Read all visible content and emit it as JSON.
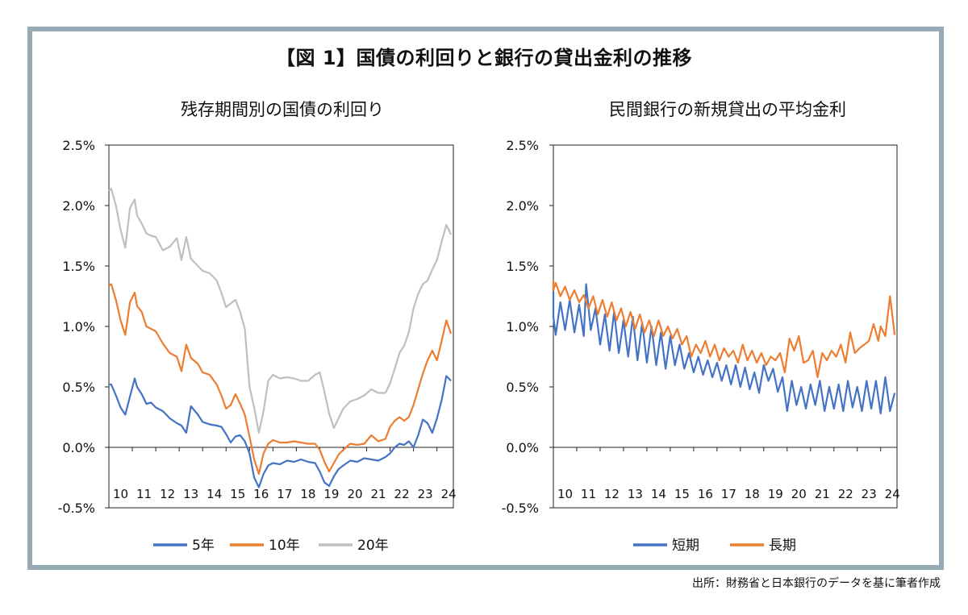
{
  "title": "【図 1】国債の利回りと銀行の貸出金利の推移",
  "source": "出所：財務省と日本銀行のデータを基に筆者作成",
  "colors": {
    "frame": "#97abb7",
    "blue": "#4472c4",
    "orange": "#ed7d31",
    "gray": "#bfbfbf"
  },
  "chart_data": [
    {
      "type": "line",
      "title": "残存期間別の国債の利回り",
      "xlabel": "",
      "ylabel": "",
      "ylim": [
        -0.5,
        2.5
      ],
      "xlim": [
        2010,
        2024.7
      ],
      "x_ticks": [
        "10",
        "11",
        "12",
        "13",
        "14",
        "15",
        "16",
        "17",
        "18",
        "19",
        "20",
        "21",
        "22",
        "23",
        "24"
      ],
      "y_ticks": [
        "2.5%",
        "2.0%",
        "1.5%",
        "1.0%",
        "0.5%",
        "0.0%",
        "-0.5%"
      ],
      "grid": false,
      "legend_position": "bottom",
      "series": [
        {
          "name": "5年",
          "color": "#4472c4",
          "x": [
            2009.9,
            2010.1,
            2010.3,
            2010.5,
            2010.7,
            2010.9,
            2011.1,
            2011.2,
            2011.4,
            2011.6,
            2011.8,
            2012.0,
            2012.3,
            2012.6,
            2012.9,
            2013.1,
            2013.3,
            2013.5,
            2013.8,
            2014.0,
            2014.3,
            2014.6,
            2014.8,
            2015.0,
            2015.2,
            2015.4,
            2015.6,
            2015.8,
            2016.0,
            2016.2,
            2016.4,
            2016.6,
            2016.8,
            2017.0,
            2017.3,
            2017.6,
            2017.9,
            2018.2,
            2018.5,
            2018.8,
            2019.0,
            2019.2,
            2019.4,
            2019.6,
            2019.8,
            2020.0,
            2020.3,
            2020.6,
            2020.9,
            2021.2,
            2021.5,
            2021.8,
            2022.0,
            2022.2,
            2022.4,
            2022.6,
            2022.8,
            2023.0,
            2023.2,
            2023.4,
            2023.6,
            2023.8,
            2024.0,
            2024.2,
            2024.4,
            2024.6
          ],
          "values": [
            0.52,
            0.52,
            0.43,
            0.33,
            0.27,
            0.42,
            0.57,
            0.5,
            0.44,
            0.36,
            0.37,
            0.33,
            0.3,
            0.24,
            0.2,
            0.18,
            0.12,
            0.34,
            0.27,
            0.21,
            0.19,
            0.18,
            0.17,
            0.11,
            0.04,
            0.09,
            0.1,
            0.05,
            -0.05,
            -0.25,
            -0.33,
            -0.22,
            -0.15,
            -0.13,
            -0.14,
            -0.11,
            -0.12,
            -0.1,
            -0.12,
            -0.13,
            -0.2,
            -0.29,
            -0.32,
            -0.24,
            -0.18,
            -0.15,
            -0.11,
            -0.12,
            -0.09,
            -0.1,
            -0.11,
            -0.08,
            -0.05,
            0.0,
            0.03,
            0.02,
            0.05,
            0.0,
            0.1,
            0.23,
            0.2,
            0.12,
            0.24,
            0.39,
            0.59,
            0.55
          ]
        },
        {
          "name": "10年",
          "color": "#ed7d31",
          "x": [
            2009.9,
            2010.1,
            2010.3,
            2010.5,
            2010.7,
            2010.9,
            2011.1,
            2011.2,
            2011.4,
            2011.6,
            2011.8,
            2012.0,
            2012.3,
            2012.6,
            2012.9,
            2013.1,
            2013.3,
            2013.5,
            2013.8,
            2014.0,
            2014.3,
            2014.6,
            2014.8,
            2015.0,
            2015.2,
            2015.4,
            2015.6,
            2015.8,
            2016.0,
            2016.2,
            2016.4,
            2016.6,
            2016.8,
            2017.0,
            2017.3,
            2017.6,
            2017.9,
            2018.2,
            2018.5,
            2018.8,
            2019.0,
            2019.2,
            2019.4,
            2019.6,
            2019.8,
            2020.0,
            2020.3,
            2020.6,
            2020.9,
            2021.2,
            2021.5,
            2021.8,
            2022.0,
            2022.2,
            2022.4,
            2022.6,
            2022.8,
            2023.0,
            2023.2,
            2023.4,
            2023.6,
            2023.8,
            2024.0,
            2024.2,
            2024.4,
            2024.6
          ],
          "values": [
            1.34,
            1.35,
            1.22,
            1.05,
            0.93,
            1.2,
            1.28,
            1.17,
            1.12,
            1.0,
            0.98,
            0.96,
            0.86,
            0.78,
            0.75,
            0.63,
            0.85,
            0.74,
            0.69,
            0.62,
            0.6,
            0.52,
            0.43,
            0.32,
            0.35,
            0.44,
            0.36,
            0.27,
            0.09,
            -0.1,
            -0.22,
            -0.05,
            0.03,
            0.06,
            0.04,
            0.04,
            0.05,
            0.04,
            0.03,
            0.03,
            -0.02,
            -0.12,
            -0.2,
            -0.13,
            -0.06,
            -0.02,
            0.03,
            0.02,
            0.03,
            0.1,
            0.05,
            0.07,
            0.17,
            0.22,
            0.25,
            0.22,
            0.25,
            0.35,
            0.48,
            0.61,
            0.72,
            0.8,
            0.72,
            0.88,
            1.05,
            0.94
          ]
        },
        {
          "name": "20年",
          "color": "#bfbfbf",
          "x": [
            2009.9,
            2010.1,
            2010.3,
            2010.5,
            2010.7,
            2010.9,
            2011.1,
            2011.2,
            2011.4,
            2011.6,
            2011.8,
            2012.0,
            2012.3,
            2012.6,
            2012.9,
            2013.1,
            2013.3,
            2013.5,
            2013.8,
            2014.0,
            2014.3,
            2014.6,
            2014.8,
            2015.0,
            2015.2,
            2015.4,
            2015.6,
            2015.8,
            2016.0,
            2016.2,
            2016.4,
            2016.6,
            2016.8,
            2017.0,
            2017.3,
            2017.6,
            2017.9,
            2018.2,
            2018.5,
            2018.8,
            2019.0,
            2019.2,
            2019.4,
            2019.6,
            2019.8,
            2020.0,
            2020.3,
            2020.6,
            2020.9,
            2021.2,
            2021.5,
            2021.8,
            2022.0,
            2022.2,
            2022.4,
            2022.6,
            2022.8,
            2023.0,
            2023.2,
            2023.4,
            2023.6,
            2023.8,
            2024.0,
            2024.2,
            2024.4,
            2024.6
          ],
          "values": [
            2.12,
            2.14,
            2.0,
            1.8,
            1.65,
            1.98,
            2.05,
            1.92,
            1.85,
            1.77,
            1.75,
            1.74,
            1.63,
            1.66,
            1.73,
            1.55,
            1.74,
            1.56,
            1.5,
            1.46,
            1.44,
            1.38,
            1.28,
            1.16,
            1.19,
            1.22,
            1.12,
            0.98,
            0.5,
            0.33,
            0.12,
            0.3,
            0.55,
            0.6,
            0.57,
            0.58,
            0.57,
            0.55,
            0.55,
            0.6,
            0.62,
            0.46,
            0.28,
            0.16,
            0.24,
            0.32,
            0.38,
            0.4,
            0.43,
            0.48,
            0.45,
            0.45,
            0.53,
            0.65,
            0.78,
            0.84,
            0.95,
            1.15,
            1.27,
            1.35,
            1.38,
            1.47,
            1.55,
            1.7,
            1.84,
            1.76
          ]
        }
      ]
    },
    {
      "type": "line",
      "title": "民間銀行の新規貸出の平均金利",
      "xlabel": "",
      "ylabel": "",
      "ylim": [
        -0.5,
        2.5
      ],
      "xlim": [
        2010,
        2024.7
      ],
      "x_ticks": [
        "10",
        "11",
        "12",
        "13",
        "14",
        "15",
        "16",
        "17",
        "18",
        "19",
        "20",
        "21",
        "22",
        "23",
        "24"
      ],
      "y_ticks": [
        "2.5%",
        "2.0%",
        "1.5%",
        "1.0%",
        "0.5%",
        "0.0%",
        "-0.5%"
      ],
      "grid": false,
      "legend_position": "bottom",
      "series": [
        {
          "name": "短期",
          "color": "#4472c4",
          "x": [
            2009.7,
            2009.9,
            2010.1,
            2010.3,
            2010.5,
            2010.7,
            2010.9,
            2011.1,
            2011.3,
            2011.4,
            2011.6,
            2011.8,
            2012.0,
            2012.2,
            2012.4,
            2012.6,
            2012.8,
            2013.0,
            2013.2,
            2013.4,
            2013.6,
            2013.8,
            2014.0,
            2014.2,
            2014.4,
            2014.6,
            2014.8,
            2015.0,
            2015.2,
            2015.4,
            2015.6,
            2015.8,
            2016.0,
            2016.2,
            2016.4,
            2016.6,
            2016.8,
            2017.0,
            2017.2,
            2017.4,
            2017.6,
            2017.8,
            2018.0,
            2018.2,
            2018.4,
            2018.6,
            2018.8,
            2019.0,
            2019.2,
            2019.4,
            2019.6,
            2019.8,
            2020.0,
            2020.2,
            2020.4,
            2020.6,
            2020.8,
            2021.0,
            2021.2,
            2021.4,
            2021.6,
            2021.8,
            2022.0,
            2022.2,
            2022.4,
            2022.6,
            2022.8,
            2023.0,
            2023.2,
            2023.4,
            2023.6,
            2023.8,
            2024.0,
            2024.2,
            2024.4,
            2024.6
          ],
          "values": [
            1.37,
            1.08,
            0.93,
            1.2,
            0.97,
            1.22,
            0.95,
            1.18,
            0.92,
            1.35,
            0.97,
            1.15,
            0.85,
            1.1,
            0.8,
            1.12,
            0.78,
            1.05,
            0.75,
            1.08,
            0.72,
            1.03,
            0.7,
            1.0,
            0.68,
            0.95,
            0.65,
            0.92,
            0.68,
            0.85,
            0.65,
            0.78,
            0.62,
            0.75,
            0.6,
            0.72,
            0.58,
            0.7,
            0.55,
            0.68,
            0.52,
            0.68,
            0.5,
            0.66,
            0.48,
            0.62,
            0.45,
            0.68,
            0.55,
            0.65,
            0.46,
            0.58,
            0.3,
            0.55,
            0.35,
            0.5,
            0.32,
            0.52,
            0.35,
            0.55,
            0.3,
            0.5,
            0.32,
            0.52,
            0.3,
            0.55,
            0.33,
            0.5,
            0.3,
            0.55,
            0.32,
            0.55,
            0.28,
            0.58,
            0.3,
            0.45
          ]
        },
        {
          "name": "長期",
          "color": "#ed7d31",
          "x": [
            2009.7,
            2009.9,
            2010.1,
            2010.3,
            2010.5,
            2010.7,
            2010.9,
            2011.1,
            2011.3,
            2011.5,
            2011.7,
            2011.9,
            2012.1,
            2012.3,
            2012.5,
            2012.7,
            2012.9,
            2013.1,
            2013.3,
            2013.5,
            2013.7,
            2013.9,
            2014.1,
            2014.3,
            2014.5,
            2014.7,
            2014.9,
            2015.1,
            2015.3,
            2015.5,
            2015.7,
            2015.9,
            2016.1,
            2016.3,
            2016.5,
            2016.7,
            2016.9,
            2017.1,
            2017.3,
            2017.5,
            2017.7,
            2017.9,
            2018.1,
            2018.3,
            2018.5,
            2018.7,
            2018.9,
            2019.1,
            2019.3,
            2019.5,
            2019.7,
            2019.9,
            2020.1,
            2020.3,
            2020.5,
            2020.7,
            2020.9,
            2021.1,
            2021.3,
            2021.5,
            2021.7,
            2021.9,
            2022.1,
            2022.3,
            2022.5,
            2022.7,
            2022.9,
            2023.1,
            2023.3,
            2023.5,
            2023.7,
            2023.9,
            2024.0,
            2024.2,
            2024.4,
            2024.6
          ],
          "values": [
            1.38,
            1.3,
            1.36,
            1.25,
            1.33,
            1.22,
            1.3,
            1.2,
            1.26,
            1.15,
            1.25,
            1.1,
            1.22,
            1.08,
            1.2,
            1.05,
            1.15,
            1.0,
            1.12,
            0.98,
            1.1,
            0.95,
            1.05,
            0.92,
            1.05,
            0.92,
            1.0,
            0.9,
            0.98,
            0.85,
            0.92,
            0.75,
            0.85,
            0.78,
            0.88,
            0.75,
            0.85,
            0.72,
            0.82,
            0.75,
            0.8,
            0.7,
            0.85,
            0.72,
            0.8,
            0.7,
            0.78,
            0.68,
            0.75,
            0.72,
            0.78,
            0.62,
            0.9,
            0.8,
            0.92,
            0.7,
            0.72,
            0.8,
            0.58,
            0.78,
            0.72,
            0.8,
            0.75,
            0.85,
            0.7,
            0.95,
            0.78,
            0.82,
            0.85,
            0.88,
            1.02,
            0.88,
            1.0,
            0.92,
            1.25,
            0.93
          ]
        }
      ]
    }
  ]
}
